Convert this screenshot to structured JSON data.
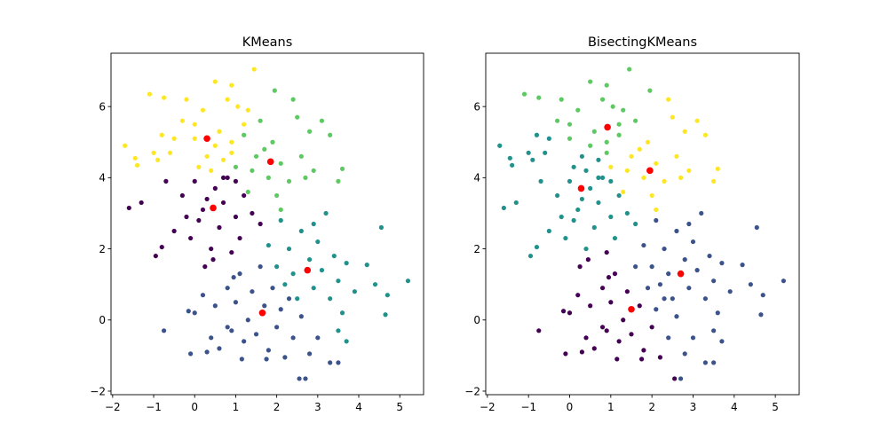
{
  "chart_data": {
    "type": "scatter",
    "grid": false,
    "xlim": [
      -2.04,
      5.58
    ],
    "ylim": [
      -2.1,
      7.5
    ],
    "xticks": [
      -2,
      -1,
      0,
      1,
      2,
      3,
      4,
      5
    ],
    "xtick_labels": [
      "−2",
      "−1",
      "0",
      "1",
      "2",
      "3",
      "4",
      "5"
    ],
    "yticks": [
      -2,
      0,
      2,
      4,
      6
    ],
    "ytick_labels": [
      "−2",
      "0",
      "2",
      "4",
      "6"
    ],
    "cluster_colors": [
      "#440154",
      "#3b528b",
      "#21918c",
      "#5ec962",
      "#fde725"
    ],
    "center_color": "#ff0000",
    "point_fields": [
      "x",
      "y",
      "kmeans_cluster",
      "bisecting_cluster"
    ],
    "points": [
      [
        -1.7,
        4.9,
        4,
        2
      ],
      [
        -1.4,
        4.35,
        4,
        2
      ],
      [
        -1.1,
        6.35,
        4,
        3
      ],
      [
        -0.75,
        6.25,
        4,
        3
      ],
      [
        -0.5,
        5.1,
        4,
        2
      ],
      [
        -0.3,
        5.6,
        4,
        3
      ],
      [
        -0.6,
        4.7,
        4,
        2
      ],
      [
        -0.9,
        4.5,
        4,
        2
      ],
      [
        0.0,
        5.5,
        4,
        3
      ],
      [
        0.2,
        5.9,
        4,
        3
      ],
      [
        0.3,
        4.6,
        4,
        2
      ],
      [
        0.5,
        6.7,
        4,
        3
      ],
      [
        0.1,
        4.3,
        4,
        2
      ],
      [
        0.6,
        5.3,
        4,
        3
      ],
      [
        0.8,
        6.2,
        4,
        3
      ],
      [
        0.9,
        5.0,
        4,
        3
      ],
      [
        1.05,
        6.0,
        4,
        3
      ],
      [
        1.3,
        5.9,
        4,
        3
      ],
      [
        1.45,
        7.05,
        4,
        3
      ],
      [
        0.9,
        6.6,
        4,
        3
      ],
      [
        1.2,
        5.5,
        4,
        3
      ],
      [
        0.7,
        4.5,
        4,
        2
      ],
      [
        0.5,
        4.9,
        4,
        3
      ],
      [
        0.4,
        4.2,
        4,
        2
      ],
      [
        0.9,
        4.7,
        4,
        3
      ],
      [
        -0.2,
        6.2,
        4,
        3
      ],
      [
        0.0,
        5.1,
        4,
        3
      ],
      [
        -1.0,
        4.7,
        4,
        2
      ],
      [
        -1.45,
        4.55,
        4,
        2
      ],
      [
        -0.8,
        5.2,
        4,
        2
      ],
      [
        -1.6,
        3.15,
        0,
        2
      ],
      [
        -1.3,
        3.3,
        0,
        2
      ],
      [
        -0.95,
        1.8,
        0,
        2
      ],
      [
        -0.8,
        2.05,
        0,
        2
      ],
      [
        -0.7,
        3.9,
        0,
        2
      ],
      [
        -0.5,
        2.5,
        0,
        2
      ],
      [
        -0.3,
        3.5,
        0,
        2
      ],
      [
        -0.1,
        2.3,
        0,
        2
      ],
      [
        0.0,
        3.9,
        0,
        2
      ],
      [
        0.1,
        2.8,
        0,
        2
      ],
      [
        0.3,
        3.4,
        0,
        2
      ],
      [
        0.4,
        2.0,
        0,
        2
      ],
      [
        0.5,
        3.7,
        0,
        2
      ],
      [
        0.6,
        2.6,
        0,
        2
      ],
      [
        0.7,
        3.3,
        0,
        2
      ],
      [
        0.8,
        4.0,
        0,
        2
      ],
      [
        0.9,
        1.9,
        0,
        0
      ],
      [
        1.0,
        2.9,
        0,
        2
      ],
      [
        1.1,
        2.3,
        0,
        2
      ],
      [
        1.2,
        3.5,
        0,
        2
      ],
      [
        1.4,
        3.0,
        0,
        2
      ],
      [
        1.6,
        2.7,
        0,
        2
      ],
      [
        0.25,
        1.5,
        0,
        0
      ],
      [
        0.45,
        1.7,
        0,
        0
      ],
      [
        0.2,
        3.1,
        0,
        2
      ],
      [
        -0.2,
        2.9,
        0,
        2
      ],
      [
        0.7,
        4.0,
        0,
        2
      ],
      [
        1.0,
        3.9,
        0,
        2
      ],
      [
        1.0,
        4.3,
        3,
        4
      ],
      [
        1.2,
        5.2,
        3,
        3
      ],
      [
        1.3,
        3.6,
        3,
        4
      ],
      [
        1.5,
        4.6,
        3,
        4
      ],
      [
        1.6,
        5.6,
        3,
        3
      ],
      [
        1.8,
        4.0,
        3,
        4
      ],
      [
        1.9,
        5.0,
        3,
        4
      ],
      [
        2.0,
        3.5,
        3,
        4
      ],
      [
        2.1,
        4.4,
        3,
        4
      ],
      [
        2.3,
        3.9,
        3,
        4
      ],
      [
        2.4,
        6.2,
        3,
        4
      ],
      [
        2.5,
        5.7,
        3,
        4
      ],
      [
        2.6,
        4.6,
        3,
        4
      ],
      [
        2.8,
        5.3,
        3,
        4
      ],
      [
        2.9,
        4.2,
        3,
        4
      ],
      [
        3.1,
        5.6,
        3,
        4
      ],
      [
        3.3,
        5.2,
        3,
        4
      ],
      [
        3.6,
        4.25,
        3,
        4
      ],
      [
        3.5,
        3.9,
        3,
        4
      ],
      [
        2.7,
        4.0,
        3,
        4
      ],
      [
        1.95,
        6.45,
        3,
        3
      ],
      [
        2.1,
        3.1,
        3,
        4
      ],
      [
        1.4,
        4.2,
        3,
        4
      ],
      [
        1.7,
        4.8,
        3,
        4
      ],
      [
        2.1,
        2.8,
        2,
        1
      ],
      [
        2.3,
        2.0,
        2,
        1
      ],
      [
        2.4,
        1.3,
        2,
        1
      ],
      [
        2.6,
        2.5,
        2,
        1
      ],
      [
        2.8,
        1.7,
        2,
        1
      ],
      [
        2.9,
        0.9,
        2,
        1
      ],
      [
        3.0,
        2.2,
        2,
        1
      ],
      [
        3.1,
        1.4,
        2,
        1
      ],
      [
        3.3,
        0.6,
        2,
        1
      ],
      [
        3.4,
        1.8,
        2,
        1
      ],
      [
        3.5,
        1.1,
        2,
        1
      ],
      [
        3.6,
        0.2,
        2,
        1
      ],
      [
        3.7,
        1.6,
        2,
        1
      ],
      [
        3.9,
        0.8,
        2,
        1
      ],
      [
        4.2,
        1.55,
        2,
        1
      ],
      [
        4.4,
        1.0,
        2,
        1
      ],
      [
        4.55,
        2.6,
        2,
        1
      ],
      [
        4.7,
        0.7,
        2,
        1
      ],
      [
        4.65,
        0.15,
        2,
        1
      ],
      [
        5.2,
        1.1,
        2,
        1
      ],
      [
        3.7,
        -0.6,
        2,
        1
      ],
      [
        3.5,
        -0.3,
        2,
        1
      ],
      [
        2.2,
        1.0,
        2,
        1
      ],
      [
        2.5,
        0.6,
        2,
        1
      ],
      [
        3.2,
        3.0,
        2,
        1
      ],
      [
        2.9,
        2.7,
        2,
        1
      ],
      [
        2.0,
        1.5,
        2,
        1
      ],
      [
        1.8,
        2.1,
        2,
        1
      ],
      [
        -0.75,
        -0.3,
        1,
        0
      ],
      [
        -0.1,
        -0.95,
        1,
        0
      ],
      [
        -0.15,
        0.25,
        1,
        0
      ],
      [
        0.2,
        0.7,
        1,
        0
      ],
      [
        0.4,
        -0.5,
        1,
        0
      ],
      [
        0.5,
        0.4,
        1,
        0
      ],
      [
        0.6,
        -0.8,
        1,
        0
      ],
      [
        0.8,
        0.9,
        1,
        0
      ],
      [
        0.9,
        -0.3,
        1,
        0
      ],
      [
        1.0,
        0.5,
        1,
        0
      ],
      [
        1.1,
        1.3,
        1,
        0
      ],
      [
        1.2,
        -0.6,
        1,
        0
      ],
      [
        1.3,
        0.0,
        1,
        0
      ],
      [
        1.4,
        0.8,
        1,
        0
      ],
      [
        1.5,
        -0.4,
        1,
        0
      ],
      [
        1.6,
        1.5,
        1,
        1
      ],
      [
        1.7,
        0.4,
        1,
        0
      ],
      [
        1.8,
        -0.85,
        1,
        0
      ],
      [
        1.9,
        0.9,
        1,
        1
      ],
      [
        2.0,
        -0.2,
        1,
        0
      ],
      [
        2.1,
        0.3,
        1,
        1
      ],
      [
        2.2,
        -1.05,
        1,
        0
      ],
      [
        2.3,
        0.6,
        1,
        1
      ],
      [
        2.4,
        -0.5,
        1,
        1
      ],
      [
        2.55,
        -1.65,
        1,
        0
      ],
      [
        2.7,
        -1.65,
        1,
        1
      ],
      [
        2.8,
        -0.95,
        1,
        1
      ],
      [
        2.6,
        0.1,
        1,
        1
      ],
      [
        3.0,
        -0.5,
        1,
        1
      ],
      [
        3.3,
        -1.2,
        1,
        1
      ],
      [
        3.5,
        -1.2,
        1,
        1
      ],
      [
        0.3,
        -0.9,
        1,
        0
      ],
      [
        0.8,
        -0.2,
        1,
        0
      ],
      [
        1.15,
        -1.1,
        1,
        0
      ],
      [
        1.75,
        -1.1,
        1,
        0
      ],
      [
        0.95,
        1.2,
        1,
        0
      ],
      [
        0.0,
        0.2,
        1,
        0
      ]
    ],
    "subplots": [
      {
        "title": "KMeans",
        "label_field": "kmeans_cluster",
        "centers": [
          [
            0.45,
            3.15
          ],
          [
            1.65,
            0.2
          ],
          [
            2.75,
            1.4
          ],
          [
            1.85,
            4.45
          ],
          [
            0.3,
            5.1
          ]
        ]
      },
      {
        "title": "BisectingKMeans",
        "label_field": "bisecting_cluster",
        "centers": [
          [
            1.5,
            0.3
          ],
          [
            2.7,
            1.3
          ],
          [
            0.28,
            3.7
          ],
          [
            0.92,
            5.42
          ],
          [
            1.95,
            4.2
          ]
        ]
      }
    ]
  }
}
